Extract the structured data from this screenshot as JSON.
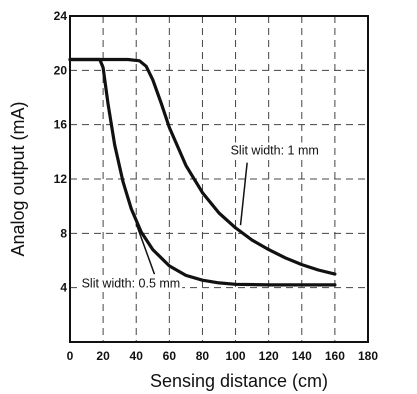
{
  "chart_data": {
    "type": "line",
    "title": "",
    "xlabel": "Sensing distance (cm)",
    "ylabel": "Analog output (mA)",
    "xlim": [
      0,
      180
    ],
    "ylim": [
      0,
      24
    ],
    "x_ticks": [
      "0",
      "20",
      "40",
      "60",
      "80",
      "100",
      "120",
      "140",
      "160",
      "180"
    ],
    "y_ticks": [
      "4",
      "8",
      "12",
      "16",
      "20",
      "24"
    ],
    "grid": true,
    "grid_style": "dashed",
    "legend": "none",
    "series": [
      {
        "name": "Slit width: 1 mm",
        "points": [
          [
            0,
            20.8
          ],
          [
            20,
            20.8
          ],
          [
            35,
            20.8
          ],
          [
            42,
            20.7
          ],
          [
            46,
            20.3
          ],
          [
            50,
            19.3
          ],
          [
            55,
            17.6
          ],
          [
            60,
            15.8
          ],
          [
            70,
            13.0
          ],
          [
            80,
            11.0
          ],
          [
            90,
            9.5
          ],
          [
            100,
            8.4
          ],
          [
            110,
            7.5
          ],
          [
            120,
            6.8
          ],
          [
            130,
            6.2
          ],
          [
            140,
            5.7
          ],
          [
            150,
            5.3
          ],
          [
            160,
            5.0
          ]
        ]
      },
      {
        "name": "Slit width: 0.5 mm",
        "points": [
          [
            0,
            20.8
          ],
          [
            18,
            20.8
          ],
          [
            20,
            20.2
          ],
          [
            23,
            17.5
          ],
          [
            27,
            14.5
          ],
          [
            32,
            11.8
          ],
          [
            37,
            9.8
          ],
          [
            43,
            8.1
          ],
          [
            50,
            6.8
          ],
          [
            60,
            5.6
          ],
          [
            70,
            4.9
          ],
          [
            80,
            4.55
          ],
          [
            90,
            4.35
          ],
          [
            100,
            4.25
          ],
          [
            120,
            4.2
          ],
          [
            140,
            4.2
          ],
          [
            160,
            4.2
          ]
        ]
      }
    ],
    "annotations": [
      {
        "text": "Slit width: 1 mm",
        "series": 0,
        "x": 97,
        "y": 13.8
      },
      {
        "text": "Slit width: 0.5 mm",
        "series": 1,
        "x": 7,
        "y": 4.0
      }
    ]
  }
}
